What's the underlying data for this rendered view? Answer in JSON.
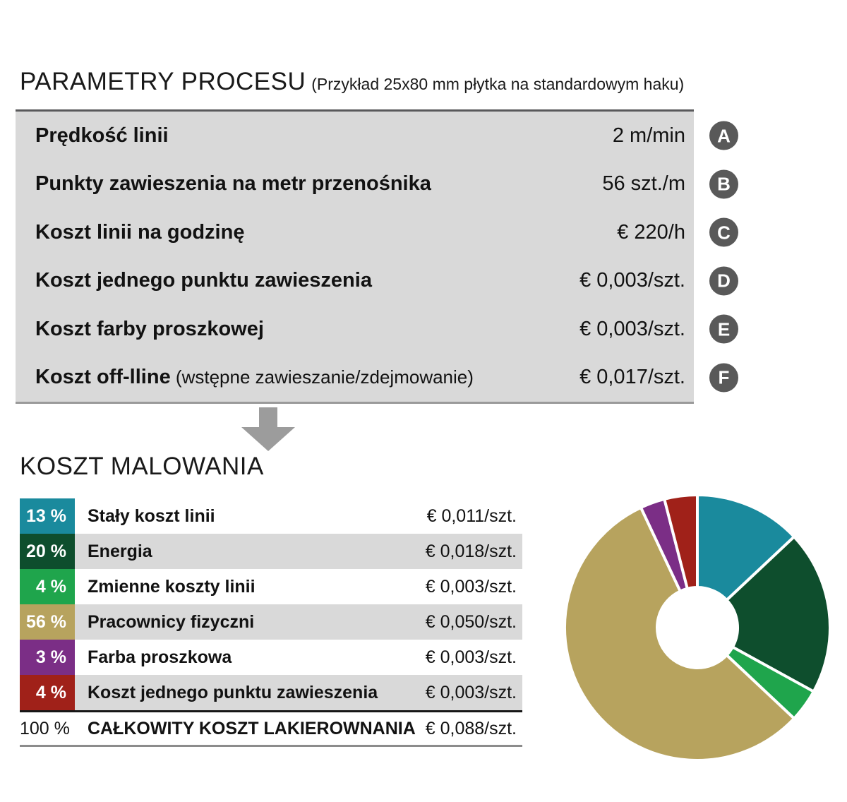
{
  "header": {
    "title": "PARAMETRY PROCESU",
    "subtitle": "(Przykład 25x80 mm płytka na standardowym haku)"
  },
  "parameters": {
    "rows": [
      {
        "label": "Prędkość linii",
        "note": "",
        "value": "2 m/min",
        "badge": "A"
      },
      {
        "label": "Punkty zawieszenia na metr przenośnika",
        "note": "",
        "value": "56 szt./m",
        "badge": "B"
      },
      {
        "label": "Koszt linii na godzinę",
        "note": "",
        "value": "€ 220/h",
        "badge": "C"
      },
      {
        "label": "Koszt jednego punktu zawieszenia",
        "note": "",
        "value": "€ 0,003/szt.",
        "badge": "D"
      },
      {
        "label": "Koszt farby proszkowej",
        "note": "",
        "value": "€ 0,003/szt.",
        "badge": "E"
      },
      {
        "label": "Koszt off-lline",
        "note": "(wstępne zawieszanie/zdejmowanie)",
        "value": "€ 0,017/szt.",
        "badge": "F"
      }
    ]
  },
  "cost_section": {
    "title": "KOSZT MALOWANIA",
    "rows": [
      {
        "percent": "13 %",
        "label": "Stały koszt linii",
        "value": "€ 0,011/szt.",
        "color": "#1a8a9d"
      },
      {
        "percent": "20 %",
        "label": "Energia",
        "value": "€ 0,018/szt.",
        "color": "#0e4e2d"
      },
      {
        "percent": "4 %",
        "label": "Zmienne koszty linii",
        "value": "€ 0,003/szt.",
        "color": "#1fa54c"
      },
      {
        "percent": "56 %",
        "label": "Pracownicy fizyczni",
        "value": "€ 0,050/szt.",
        "color": "#b7a35e"
      },
      {
        "percent": "3 %",
        "label": "Farba proszkowa",
        "value": "€ 0,003/szt.",
        "color": "#7b2e86"
      },
      {
        "percent": "4 %",
        "label": "Koszt jednego punktu zawieszenia",
        "value": "€ 0,003/szt.",
        "color": "#a02119"
      }
    ],
    "total": {
      "percent": "100 %",
      "label": "CAŁKOWITY KOSZT LAKIEROWNANIA",
      "value": "€ 0,088/szt."
    }
  },
  "chart_data": {
    "type": "pie",
    "subtype": "donut",
    "title": "Koszt malowania - udział składników",
    "labels": [
      "Stały koszt linii",
      "Energia",
      "Zmienne koszty linii",
      "Pracownicy fizyczni",
      "Farba proszkowa",
      "Koszt jednego punktu zawieszenia"
    ],
    "values": [
      13,
      20,
      4,
      56,
      3,
      4
    ],
    "unit": "%",
    "colors": [
      "#1a8a9d",
      "#0e4e2d",
      "#1fa54c",
      "#b7a35e",
      "#7b2e86",
      "#a02119"
    ],
    "start_angle_deg": 0,
    "direction": "clockwise",
    "donut_hole_ratio": 0.3,
    "segment_gap_color": "#ffffff",
    "legend_position": "none"
  },
  "colors": {
    "table_bg": "#d9d9d9",
    "table_border_top": "#59595b",
    "table_border_bottom": "#9a9a9a",
    "badge_bg": "#595959",
    "arrow": "#9c9c9c",
    "total_border_top": "#161616",
    "total_border_bottom": "#8c8c8c",
    "text": "#121212"
  }
}
